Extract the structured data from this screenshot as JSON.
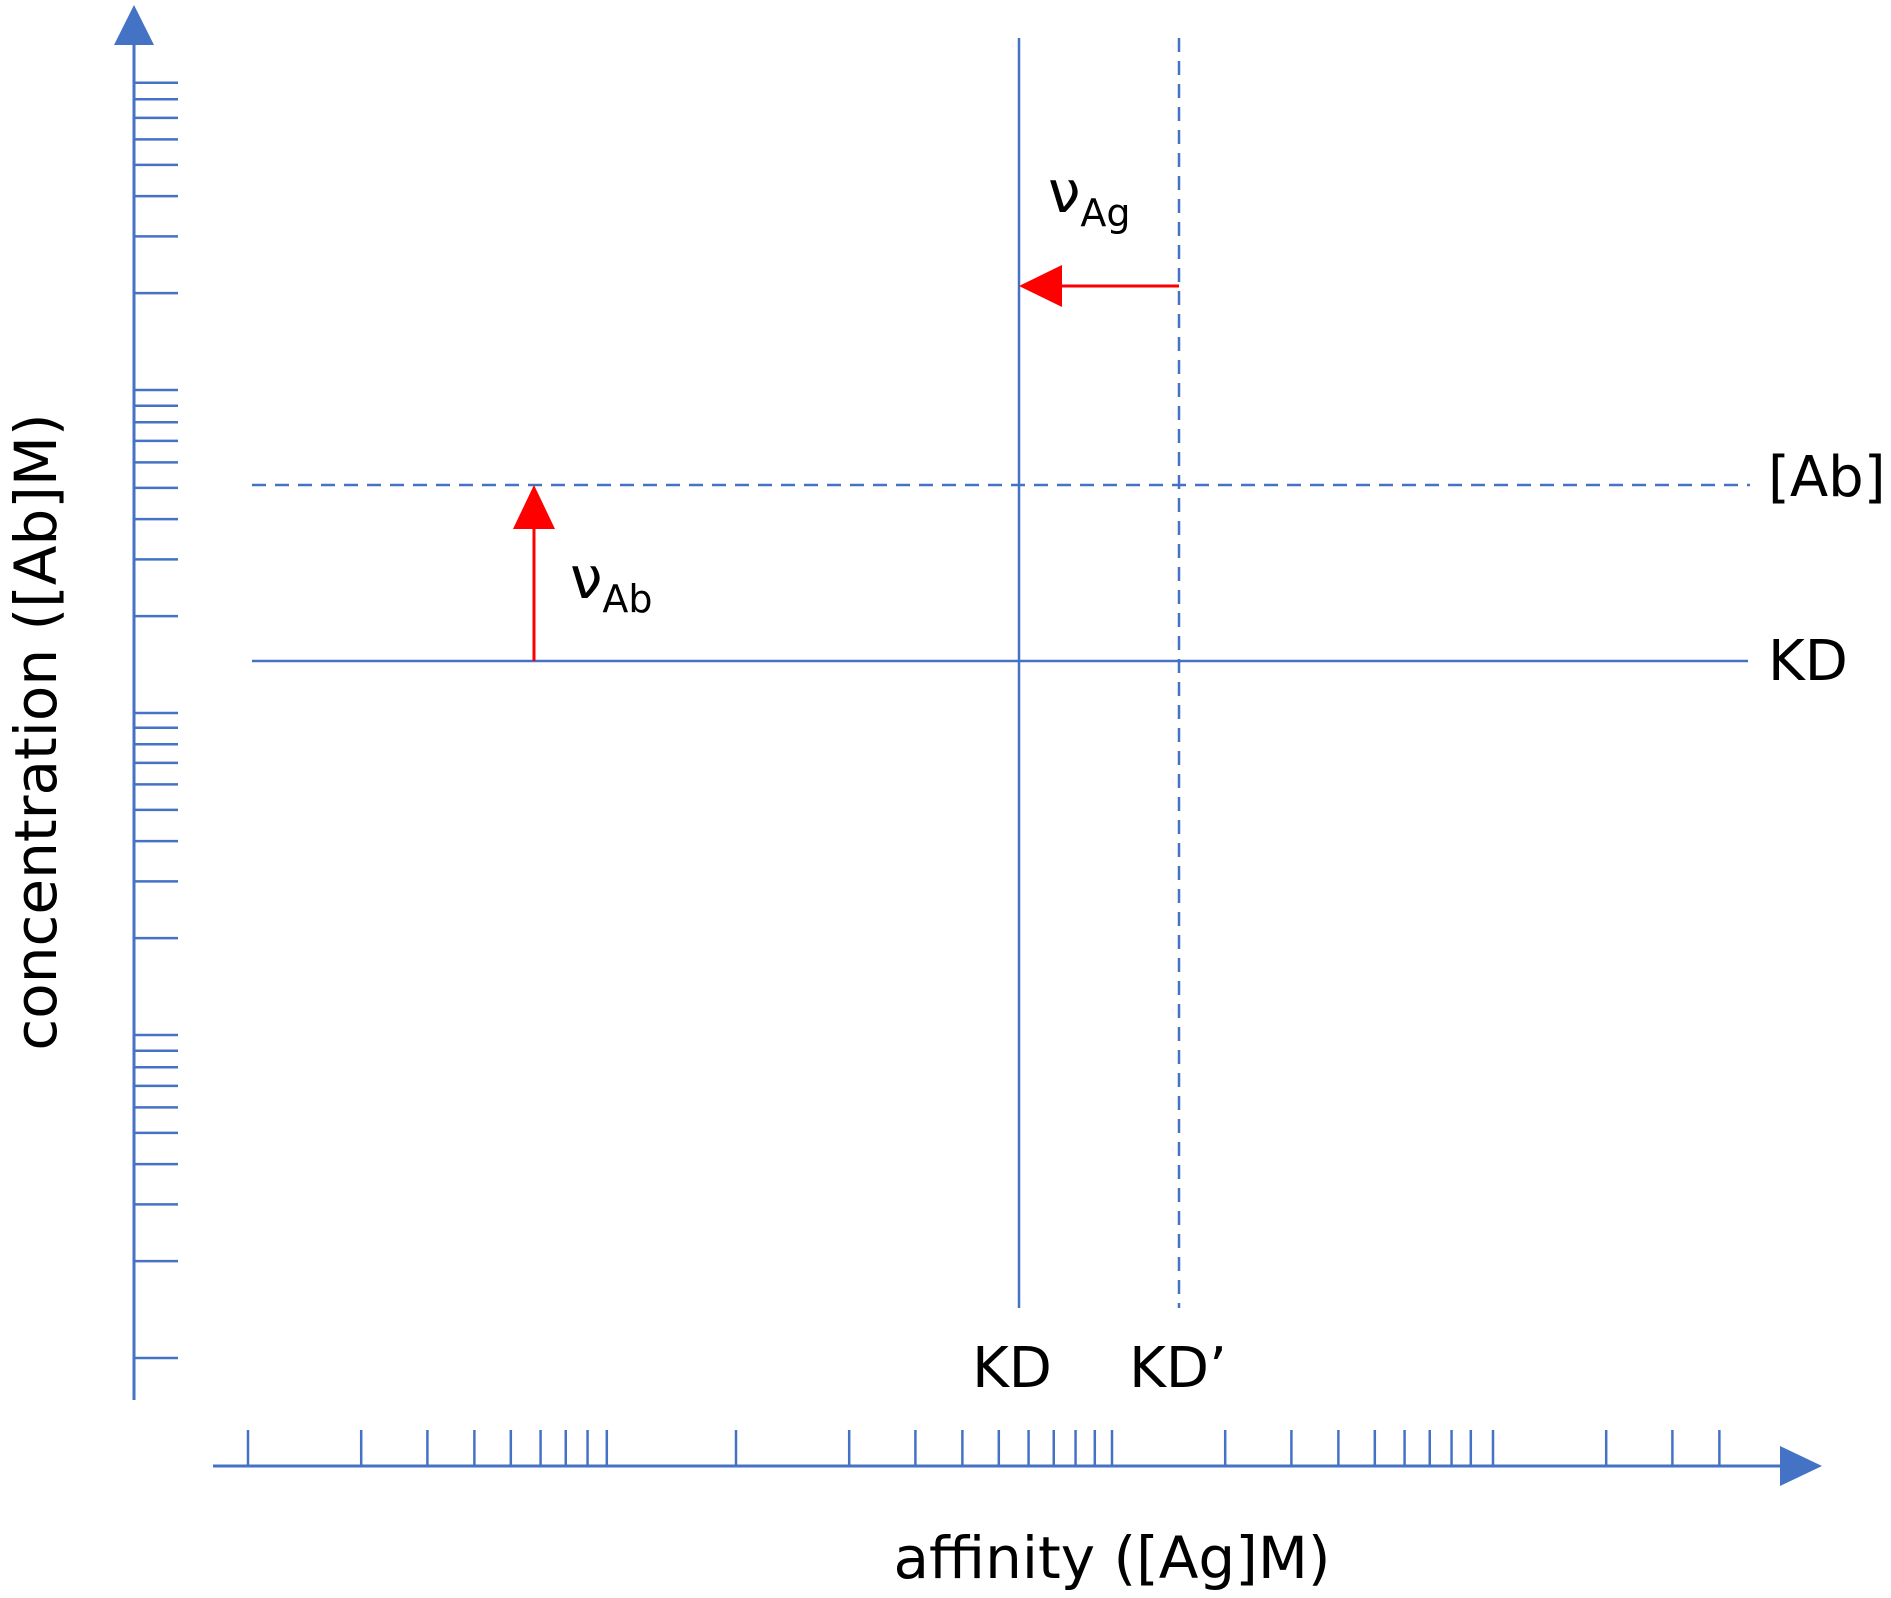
{
  "axes": {
    "x_label": "affinity ([Ag]M)",
    "y_label": "concentration ([Ab]M)",
    "x_scale": "log",
    "y_scale": "log",
    "x_decades": 4,
    "y_decades": 4
  },
  "lines": {
    "ab_label": "[Ab]",
    "kd_h_label": "KD",
    "kd_v_label": "KD",
    "kd_prime_label": "KD’"
  },
  "arrows": {
    "v_ab": {
      "symbol": "ν",
      "subscript": "Ab"
    },
    "v_ag": {
      "symbol": "ν",
      "subscript": "Ag"
    }
  },
  "colors": {
    "axis": "#4472c4",
    "line": "#4472c4",
    "arrow": "#ff0000",
    "text": "#000000"
  }
}
